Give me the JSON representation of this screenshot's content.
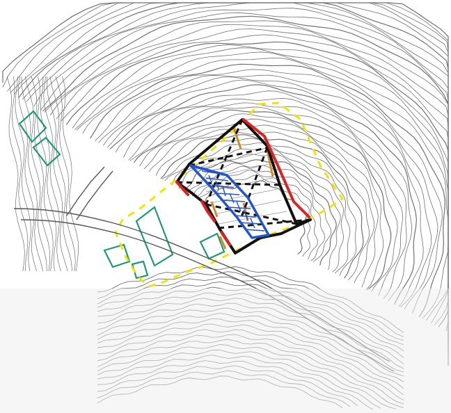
{
  "map": {
    "colors": {
      "background": "#ffffff",
      "bottom_band": "#eeeeee",
      "contours": "#6f6f6f",
      "existing_buildings": "#1f9a70",
      "site_boundary": "#f0e400",
      "building_outline": "#111111",
      "facade": "#dd2222",
      "ramp": "#2255cc",
      "hatch": "#2255cc",
      "terrace": "#d08a2a"
    },
    "layers": [
      "contour-lines",
      "existing-buildings",
      "site-boundary",
      "proposed-building",
      "ramp"
    ]
  }
}
